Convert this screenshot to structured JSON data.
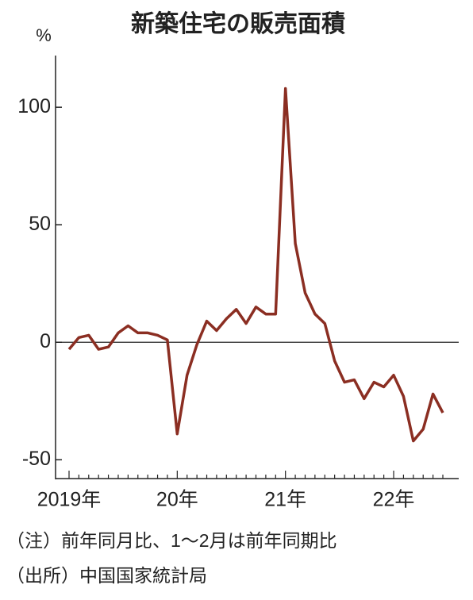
{
  "chart_data": {
    "type": "line",
    "title": "新築住宅の販売面積",
    "y_unit": "%",
    "categories": [
      "2019年",
      null,
      null,
      null,
      null,
      null,
      null,
      null,
      null,
      null,
      null,
      "20年",
      null,
      null,
      null,
      null,
      null,
      null,
      null,
      null,
      null,
      null,
      "21年",
      null,
      null,
      null,
      null,
      null,
      null,
      null,
      null,
      null,
      null,
      "22年",
      null,
      null,
      null,
      null,
      null
    ],
    "series": [
      {
        "color": "#8b2e22",
        "values": [
          -3,
          2,
          3,
          -3,
          -2,
          4,
          7,
          4,
          4,
          3,
          1,
          -39,
          -14,
          -1,
          9,
          5,
          10,
          14,
          8,
          15,
          12,
          12,
          108,
          42,
          21,
          12,
          8,
          -8,
          -17,
          -16,
          -24,
          -17,
          -19,
          -14,
          -23,
          -42,
          -37,
          -22,
          -30
        ]
      }
    ],
    "ylim": [
      -58,
      122
    ],
    "yticks": [
      -50,
      0,
      50,
      100
    ],
    "notes": [
      "（注）前年同月比、1～2月は前年同期比",
      "（出所）中国国家統計局"
    ]
  }
}
